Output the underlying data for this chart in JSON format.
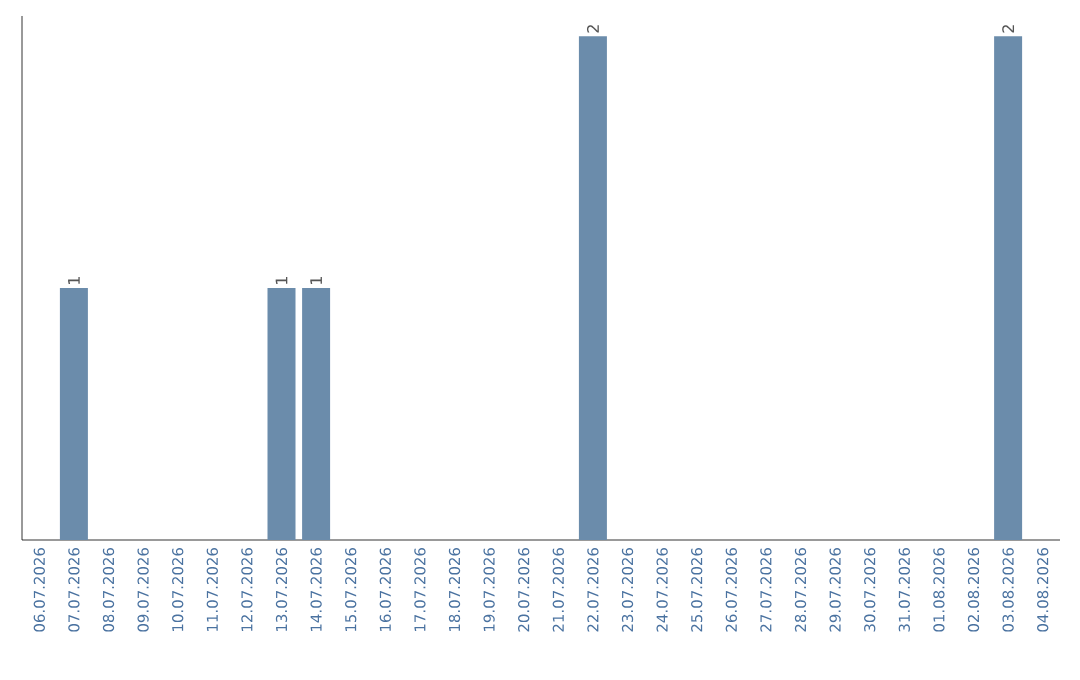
{
  "chart_data": {
    "type": "bar",
    "color": "#6b8cab",
    "categories": [
      "06.07.2026",
      "07.07.2026",
      "08.07.2026",
      "09.07.2026",
      "10.07.2026",
      "11.07.2026",
      "12.07.2026",
      "13.07.2026",
      "14.07.2026",
      "15.07.2026",
      "16.07.2026",
      "17.07.2026",
      "18.07.2026",
      "19.07.2026",
      "20.07.2026",
      "21.07.2026",
      "22.07.2026",
      "23.07.2026",
      "24.07.2026",
      "25.07.2026",
      "26.07.2026",
      "27.07.2026",
      "28.07.2026",
      "29.07.2026",
      "30.07.2026",
      "31.07.2026",
      "01.08.2026",
      "02.08.2026",
      "03.08.2026",
      "04.08.2026"
    ],
    "values": [
      0,
      1,
      0,
      0,
      0,
      0,
      0,
      1,
      1,
      0,
      0,
      0,
      0,
      0,
      0,
      0,
      2,
      0,
      0,
      0,
      0,
      0,
      0,
      0,
      0,
      0,
      0,
      0,
      2,
      0
    ],
    "value_labels": [
      null,
      "1",
      null,
      null,
      null,
      null,
      null,
      "1",
      "1",
      null,
      null,
      null,
      null,
      null,
      null,
      null,
      "2",
      null,
      null,
      null,
      null,
      null,
      null,
      null,
      null,
      null,
      null,
      null,
      "2",
      null
    ],
    "grid": false
  }
}
